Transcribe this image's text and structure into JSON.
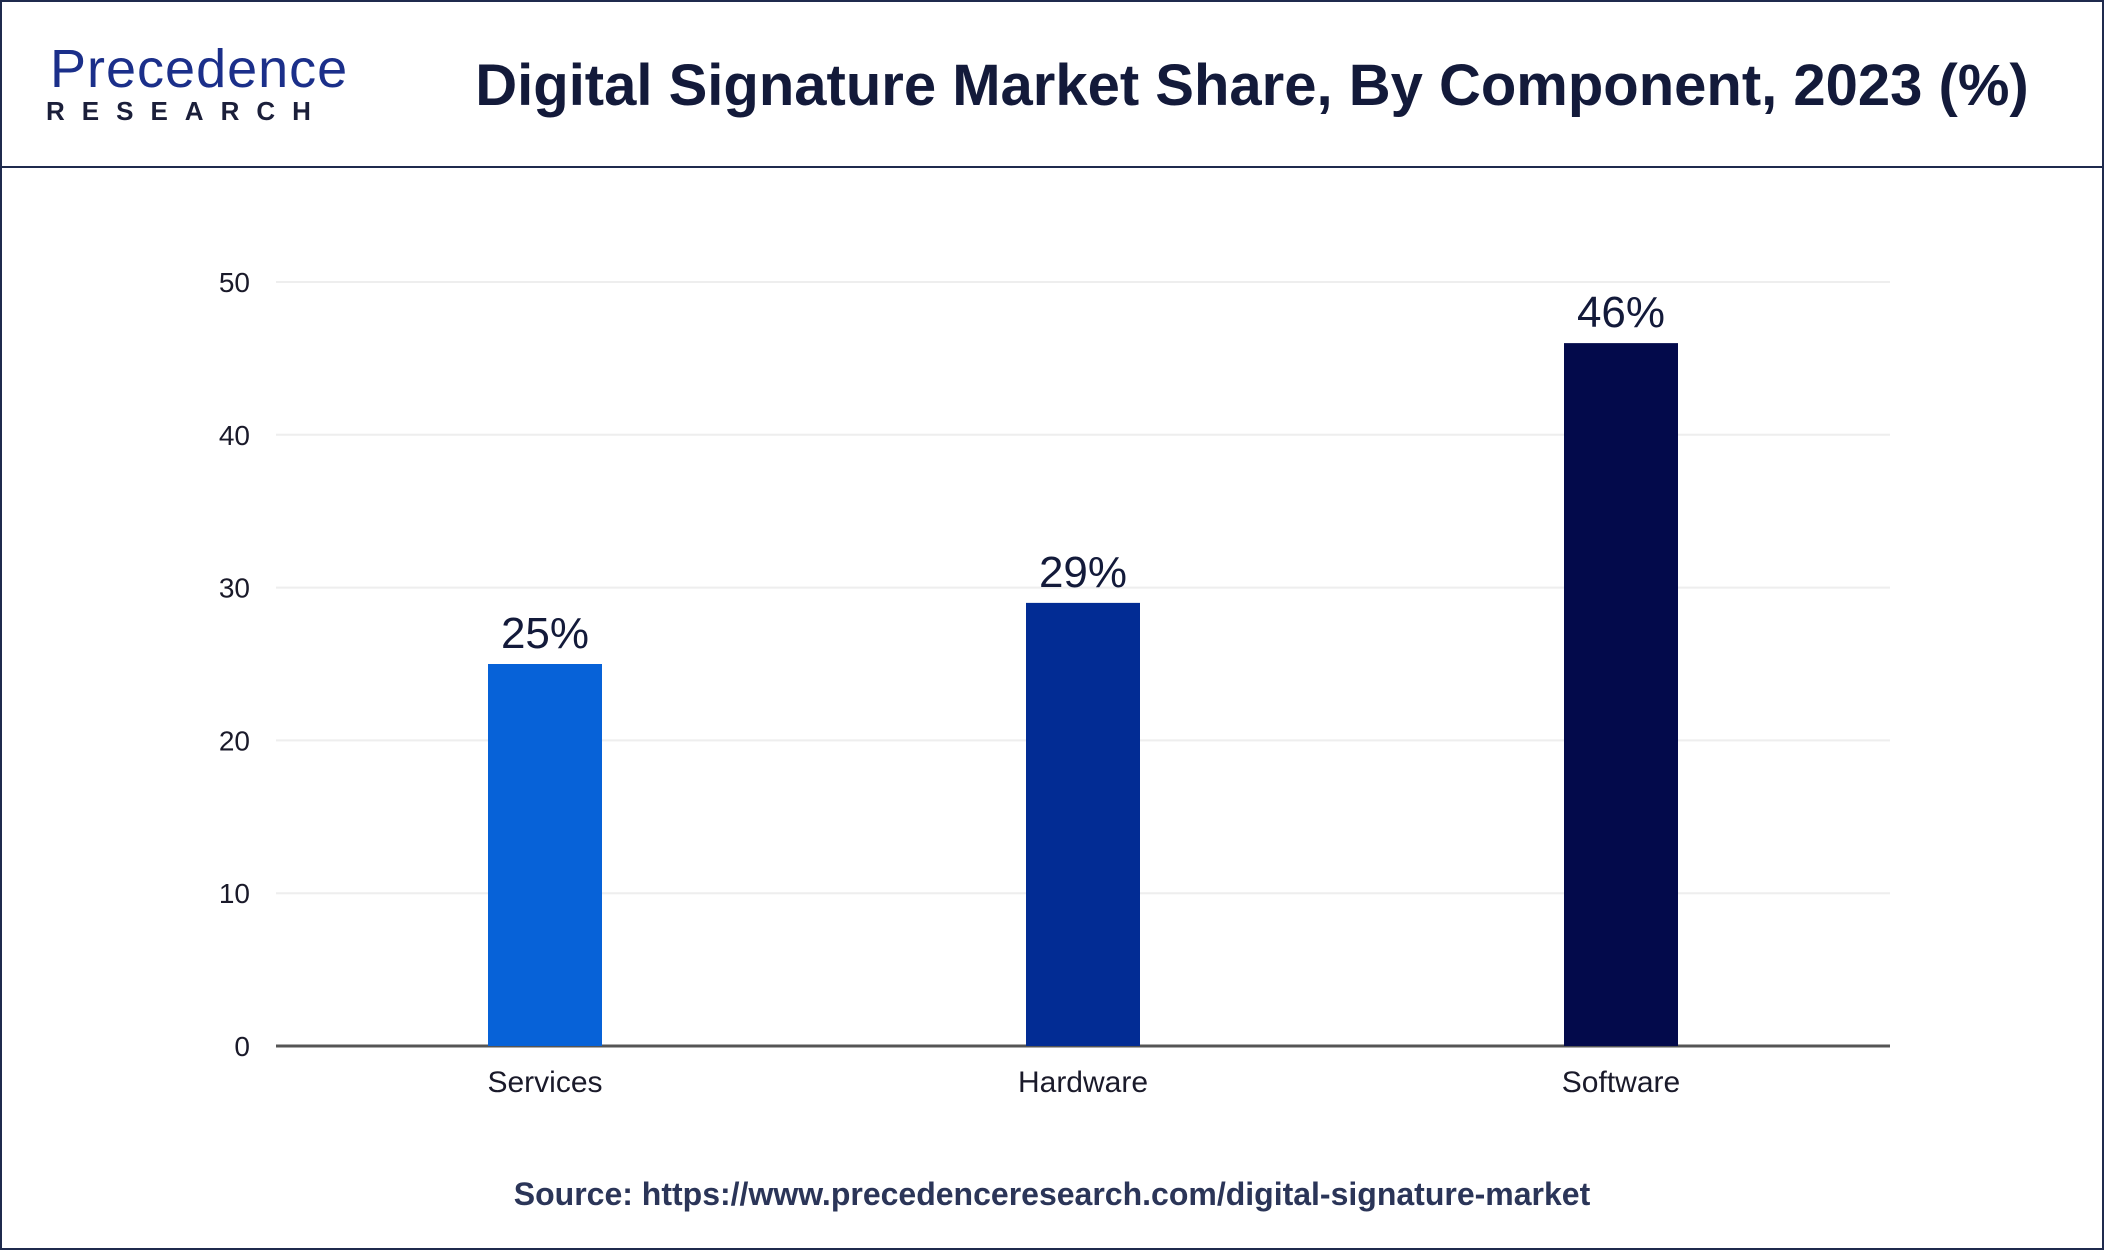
{
  "header": {
    "logo_word": "Precedence",
    "logo_sub": "RESEARCH",
    "title": "Digital Signature Market Share, By Component, 2023 (%)"
  },
  "colors": {
    "frame": "#1f2a4d",
    "title_text": "#131a3a",
    "logo_blue": "#1b2f8a",
    "bars": [
      "#0762d8",
      "#022c94",
      "#030a4b"
    ]
  },
  "chart_data": {
    "type": "bar",
    "title": "Digital Signature Market Share, By Component, 2023 (%)",
    "xlabel": "",
    "ylabel": "",
    "categories": [
      "Services",
      "Hardware",
      "Software"
    ],
    "values": [
      25,
      29,
      46
    ],
    "data_labels": [
      "25%",
      "29%",
      "46%"
    ],
    "ylim": [
      0,
      50
    ],
    "yticks": [
      0,
      10,
      20,
      30,
      40,
      50
    ],
    "grid": true,
    "legend": "none"
  },
  "footer": {
    "source": "Source: https://www.precedenceresearch.com/digital-signature-market"
  }
}
